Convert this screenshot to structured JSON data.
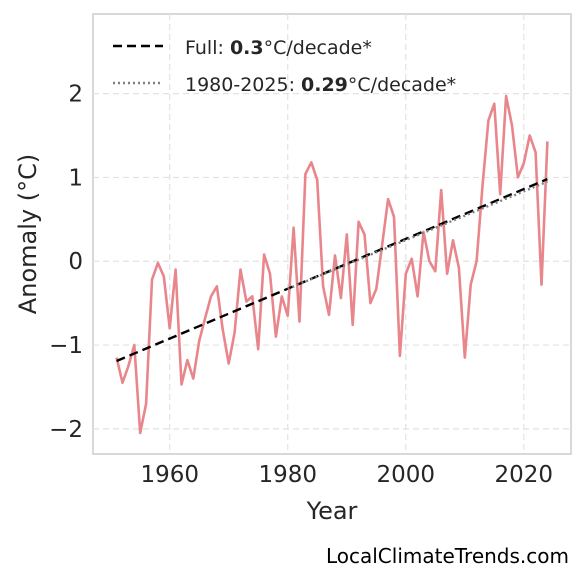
{
  "chart_data": {
    "type": "line",
    "xlabel": "Year",
    "ylabel": "Anomaly (°C)",
    "xlim": [
      1947,
      2028
    ],
    "ylim": [
      -2.3,
      2.95
    ],
    "xticks": [
      1960,
      1980,
      2000,
      2020
    ],
    "yticks": [
      -2,
      -1,
      0,
      1,
      2
    ],
    "ytick_labels": [
      "−2",
      "−1",
      "0",
      "1",
      "2"
    ],
    "grid": true,
    "legend_position": "top-left",
    "series": [
      {
        "kind": "anomaly",
        "color": "#e8868c",
        "x": [
          1951,
          1952,
          1953,
          1954,
          1955,
          1956,
          1957,
          1958,
          1959,
          1960,
          1961,
          1962,
          1963,
          1964,
          1965,
          1966,
          1967,
          1968,
          1969,
          1970,
          1971,
          1972,
          1973,
          1974,
          1975,
          1976,
          1977,
          1978,
          1979,
          1980,
          1981,
          1982,
          1983,
          1984,
          1985,
          1986,
          1987,
          1988,
          1989,
          1990,
          1991,
          1992,
          1993,
          1994,
          1995,
          1996,
          1997,
          1998,
          1999,
          2000,
          2001,
          2002,
          2003,
          2004,
          2005,
          2006,
          2007,
          2008,
          2009,
          2010,
          2011,
          2012,
          2013,
          2014,
          2015,
          2016,
          2017,
          2018,
          2019,
          2020,
          2021,
          2022,
          2023,
          2024
        ],
        "y": [
          -1.15,
          -1.45,
          -1.25,
          -1.0,
          -2.05,
          -1.7,
          -0.22,
          -0.02,
          -0.18,
          -0.8,
          -0.1,
          -1.47,
          -1.18,
          -1.4,
          -0.95,
          -0.68,
          -0.42,
          -0.3,
          -0.82,
          -1.22,
          -0.85,
          -0.1,
          -0.48,
          -0.42,
          -1.05,
          0.08,
          -0.15,
          -0.9,
          -0.42,
          -0.65,
          0.4,
          -0.72,
          1.04,
          1.18,
          0.97,
          -0.3,
          -0.64,
          0.07,
          -0.44,
          0.32,
          -0.76,
          0.47,
          0.32,
          -0.5,
          -0.33,
          0.2,
          0.74,
          0.53,
          -1.13,
          -0.15,
          0.03,
          -0.42,
          0.35,
          0.0,
          -0.12,
          0.85,
          -0.15,
          0.25,
          -0.08,
          -1.15,
          -0.28,
          0.0,
          0.9,
          1.68,
          1.88,
          0.8,
          1.97,
          1.62,
          1.0,
          1.17,
          1.5,
          1.3,
          -0.28,
          1.43
        ]
      },
      {
        "kind": "trend-full",
        "name": "Full",
        "color": "#000000",
        "x": [
          1951,
          2024
        ],
        "y": [
          -1.19,
          0.98
        ]
      },
      {
        "kind": "trend-recent",
        "name": "1980-2025",
        "color": "#808080",
        "x": [
          1980,
          2024
        ],
        "y": [
          -0.33,
          0.95
        ]
      }
    ],
    "legend": [
      {
        "prefix": "Full: ",
        "value": "0.3",
        "suffix": "°C/decade*",
        "style": "dashed",
        "color": "#000000"
      },
      {
        "prefix": "1980-2025: ",
        "value": "0.29",
        "suffix": "°C/decade*",
        "style": "dotted",
        "color": "#808080"
      }
    ]
  },
  "watermark": "LocalClimateTrends.com"
}
